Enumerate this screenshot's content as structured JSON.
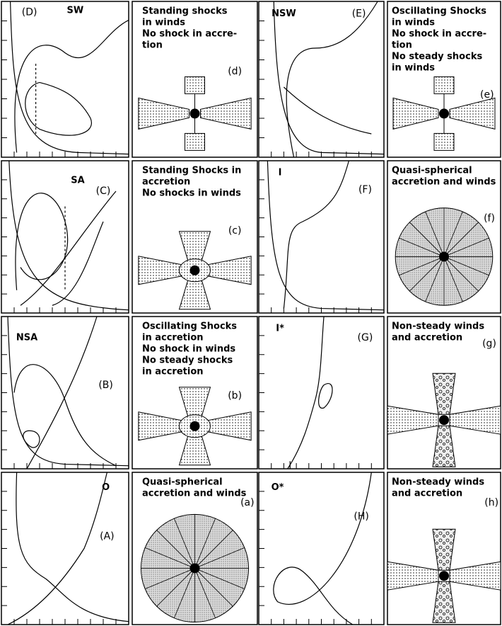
{
  "panels": [
    {
      "case": "(D)",
      "label": "SW"
    },
    {
      "lines": [
        "Standing shocks",
        "in winds",
        "No shock in accre-",
        "tion"
      ],
      "tag": "(d)"
    },
    {
      "case": "(E)",
      "label": "NSW"
    },
    {
      "lines": [
        "Oscillating Shocks",
        "in winds",
        "No shock in accre-",
        "tion",
        "No steady shocks",
        "in winds"
      ],
      "tag": "(e)"
    },
    {
      "case": "(C)",
      "label": "SA"
    },
    {
      "lines": [
        "Standing Shocks in",
        "accretion",
        "No shocks in winds"
      ],
      "tag": "(c)"
    },
    {
      "case": "(F)",
      "label": "I"
    },
    {
      "lines": [
        "Quasi-spherical",
        "accretion and winds"
      ],
      "tag": "(f)"
    },
    {
      "case": "(B)",
      "label": "NSA"
    },
    {
      "lines": [
        "Oscillating Shocks",
        "in accretion",
        "No shock in winds",
        "No steady shocks",
        "in accretion"
      ],
      "tag": "(b)"
    },
    {
      "case": "(G)",
      "label": "I*"
    },
    {
      "lines": [
        "Non-steady winds",
        "and  accretion"
      ],
      "tag": "(g)"
    },
    {
      "case": "(A)",
      "label": "O"
    },
    {
      "lines": [
        "Quasi-spherical",
        "accretion and winds"
      ],
      "tag": "(a)"
    },
    {
      "case": "(H)",
      "label": "O*"
    },
    {
      "lines": [
        "Non-steady winds",
        "and accretion"
      ],
      "tag": "(h)"
    }
  ]
}
